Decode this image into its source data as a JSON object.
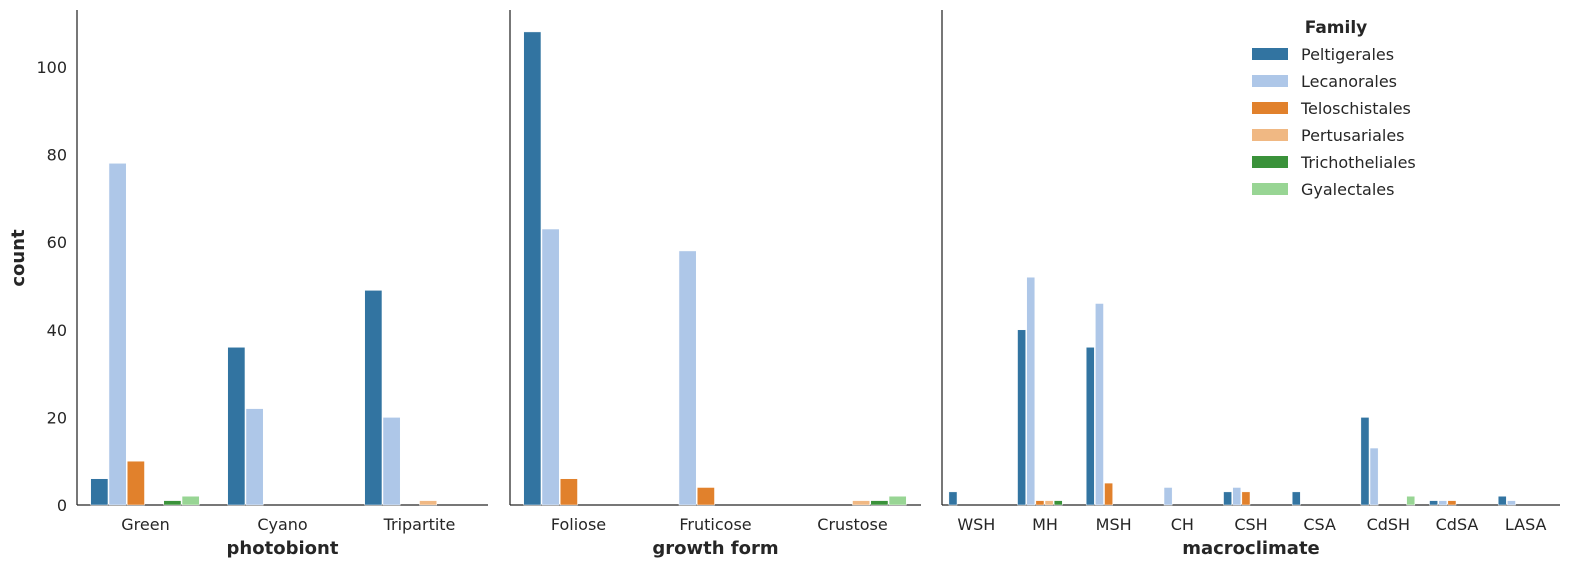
{
  "chart_data": {
    "type": "bar",
    "ylabel": "count",
    "ylim": [
      0,
      113
    ],
    "y_ticks": [
      0,
      20,
      40,
      60,
      80,
      100
    ],
    "grid": false,
    "legend": {
      "title": "Family",
      "placement": "top-right",
      "entries": [
        "Peltigerales",
        "Lecanorales",
        "Teloschistales",
        "Pertusariales",
        "Trichotheliales",
        "Gyalectales"
      ]
    },
    "colors": [
      "#3274a1",
      "#aec7e8",
      "#e1812c",
      "#f0b883",
      "#3a923a",
      "#98d594"
    ],
    "series_names": [
      "Peltigerales",
      "Lecanorales",
      "Teloschistales",
      "Pertusariales",
      "Trichotheliales",
      "Gyalectales"
    ],
    "panels": [
      {
        "xlabel": "photobiont",
        "categories": [
          "Green",
          "Cyano",
          "Tripartite"
        ],
        "series": [
          {
            "name": "Peltigerales",
            "values": [
              6,
              36,
              49
            ]
          },
          {
            "name": "Lecanorales",
            "values": [
              78,
              22,
              20
            ]
          },
          {
            "name": "Teloschistales",
            "values": [
              10,
              0,
              0
            ]
          },
          {
            "name": "Pertusariales",
            "values": [
              0,
              0,
              1
            ]
          },
          {
            "name": "Trichotheliales",
            "values": [
              1,
              0,
              0
            ]
          },
          {
            "name": "Gyalectales",
            "values": [
              2,
              0,
              0
            ]
          }
        ]
      },
      {
        "xlabel": "growth form",
        "categories": [
          "Foliose",
          "Fruticose",
          "Crustose"
        ],
        "series": [
          {
            "name": "Peltigerales",
            "values": [
              108,
              0,
              0
            ]
          },
          {
            "name": "Lecanorales",
            "values": [
              63,
              58,
              0
            ]
          },
          {
            "name": "Teloschistales",
            "values": [
              6,
              4,
              0
            ]
          },
          {
            "name": "Pertusariales",
            "values": [
              0,
              0,
              1
            ]
          },
          {
            "name": "Trichotheliales",
            "values": [
              0,
              0,
              1
            ]
          },
          {
            "name": "Gyalectales",
            "values": [
              0,
              0,
              2
            ]
          }
        ]
      },
      {
        "xlabel": "macroclimate",
        "categories": [
          "WSH",
          "MH",
          "MSH",
          "CH",
          "CSH",
          "CSA",
          "CdSH",
          "CdSA",
          "LASA"
        ],
        "series": [
          {
            "name": "Peltigerales",
            "values": [
              3,
              40,
              36,
              0,
              3,
              3,
              20,
              1,
              2
            ]
          },
          {
            "name": "Lecanorales",
            "values": [
              0,
              52,
              46,
              4,
              4,
              0,
              13,
              1,
              1
            ]
          },
          {
            "name": "Teloschistales",
            "values": [
              0,
              1,
              5,
              0,
              3,
              0,
              0,
              1,
              0
            ]
          },
          {
            "name": "Pertusariales",
            "values": [
              0,
              1,
              0,
              0,
              0,
              0,
              0,
              0,
              0
            ]
          },
          {
            "name": "Trichotheliales",
            "values": [
              0,
              1,
              0,
              0,
              0,
              0,
              0,
              0,
              0
            ]
          },
          {
            "name": "Gyalectales",
            "values": [
              0,
              0,
              0,
              0,
              0,
              0,
              2,
              0,
              0
            ]
          }
        ]
      }
    ]
  }
}
